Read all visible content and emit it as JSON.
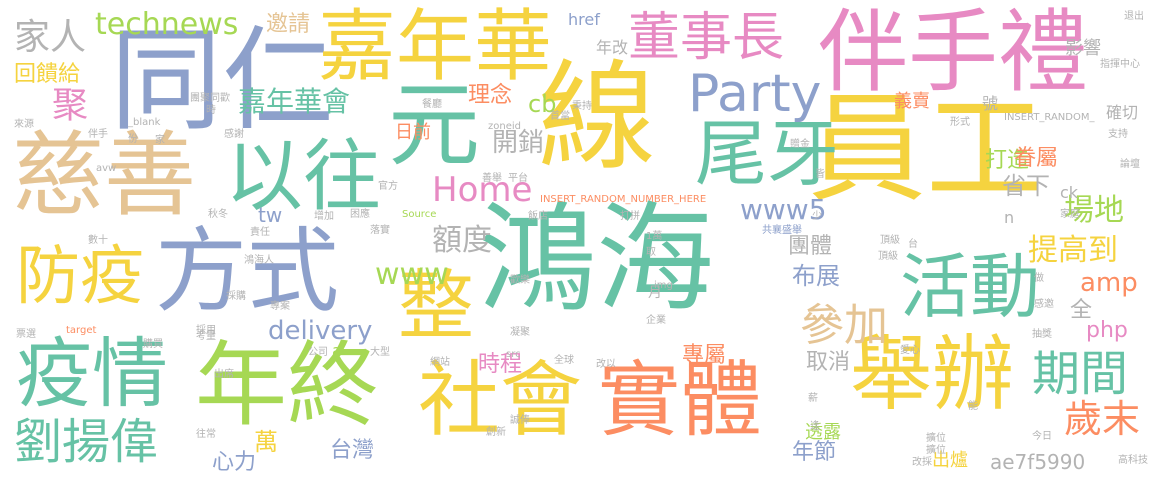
{
  "palette": {
    "yellow": "#f5d33f",
    "pink": "#e78ac3",
    "green": "#66c2a5",
    "lime": "#a6d854",
    "orange": "#fc8d62",
    "blue": "#8da0cb",
    "tan": "#e5c494",
    "gray": "#b3b3b3"
  },
  "words": [
    "鴻海",
    "員工",
    "線",
    "元",
    "同仁",
    "伴手禮",
    "嘉年華",
    "慈善",
    "以往",
    "尾牙",
    "方式",
    "活動",
    "舉辦",
    "實體",
    "社會",
    "年終",
    "疫情",
    "防疫",
    "整",
    "董事長",
    "Party",
    "Home",
    "劉揚偉",
    "期間",
    "歲末",
    "參加",
    "家人",
    "technews",
    "聚",
    "嘉年華會",
    "www5",
    "www",
    "額度",
    "場地",
    "提高到",
    "delivery",
    "布展",
    "amp",
    "php",
    "邀請",
    "回饋給",
    "理念",
    "cb",
    "開銷",
    "打造",
    "眷屬",
    "省下",
    "團體",
    "專屬",
    "取消",
    "時程",
    "萬",
    "台灣",
    "心力",
    "年節",
    "透露",
    "出爐",
    "ae7f5990",
    "全",
    "義賣",
    "影響",
    "確切",
    "號",
    "年改",
    "href",
    "日前",
    "tw",
    "ck",
    "n",
    "月",
    "a",
    "INSERT_RANDOM_",
    "INSERT_RANDOM_NUMBER_HERE",
    "_blank",
    "zoneid",
    "img",
    "src",
    "Source",
    "target",
    "avw",
    "團聚同歡",
    "指揮中心",
    "秉持",
    "感謝",
    "善舉",
    "平台",
    "共襄盛舉",
    "餐廳",
    "首當",
    "贈金",
    "支持",
    "論壇",
    "形式",
    "皆",
    "擴位",
    "頂級",
    "歡樂",
    "凝聚",
    "網站",
    "大型",
    "公司",
    "企業",
    "抽獎",
    "愛心",
    "感邀",
    "今日",
    "高科技",
    "改採",
    "誠俸",
    "創新",
    "改以",
    "全球",
    "出席",
    "往常",
    "採購",
    "採用",
    "考量",
    "購買",
    "票選",
    "數十",
    "責任",
    "增加",
    "困應",
    "落實",
    "鴻海人",
    "專案",
    "來源",
    "時",
    "份",
    "家",
    "伴手",
    "家庭",
    "秋冬",
    "官方",
    "飯店",
    "打拼",
    "退出",
    "少",
    "做",
    "取",
    "1萬",
    "台",
    "薪",
    "能",
    "擴位",
    "頂級",
    "逢"
  ]
}
